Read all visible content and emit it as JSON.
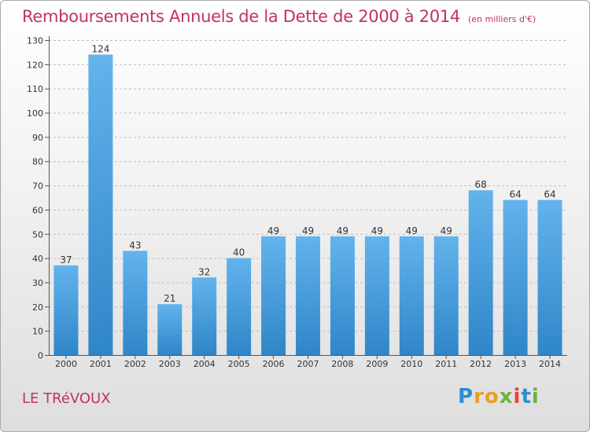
{
  "header": {
    "title": "Remboursements Annuels de la Dette de 2000 à 2014",
    "subtitle": "(en milliers d'€)"
  },
  "footer": {
    "location": "LE TRéVOUX",
    "logo_letters": [
      "P",
      "r",
      "o",
      "x",
      "i",
      "t",
      "i"
    ]
  },
  "colors": {
    "bar_top": "#63b3ec",
    "bar_bottom": "#2f86c8",
    "title": "#c4306a",
    "grid": "#bdbdbd"
  },
  "chart_data": {
    "type": "bar",
    "title": "Remboursements Annuels de la Dette de 2000 à 2014",
    "ylabel": "en milliers d'€",
    "xlabel": "",
    "categories": [
      "2000",
      "2001",
      "2002",
      "2003",
      "2004",
      "2005",
      "2006",
      "2007",
      "2008",
      "2009",
      "2010",
      "2011",
      "2012",
      "2013",
      "2014"
    ],
    "values": [
      37,
      124,
      43,
      21,
      32,
      40,
      49,
      49,
      49,
      49,
      49,
      49,
      68,
      64,
      64
    ],
    "ylim": [
      0,
      130
    ],
    "yticks": [
      0,
      10,
      20,
      30,
      40,
      50,
      60,
      70,
      80,
      90,
      100,
      110,
      120,
      130
    ],
    "grid": true
  }
}
